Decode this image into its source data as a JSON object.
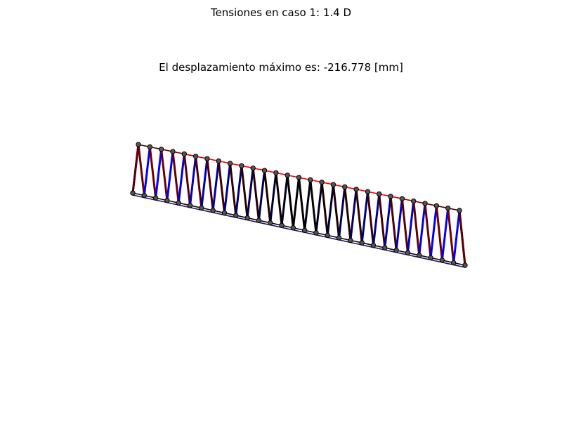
{
  "figure": {
    "suptitle": "Tensiones en caso 1: 1.4 D",
    "title": "El desplazamiento máximo es: -216.778 [mm]"
  },
  "colors": {
    "background": "#ffffff",
    "node_fill": "#555555",
    "node_edge": "#000000",
    "compression_max": "#ff0000",
    "neutral": "#000000",
    "tension_max": "#0000ff",
    "chord_dark": "#5a0000"
  },
  "truss": {
    "panels": 15,
    "description_style": "deformed warren truss colored by stress"
  }
}
